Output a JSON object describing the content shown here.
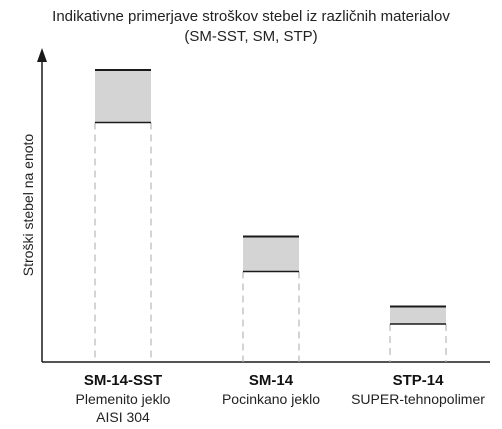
{
  "chart_data": {
    "type": "bar",
    "title": "Indikativne primerjave stroškov stebel iz različnih materialov",
    "subtitle": "(SM-SST, SM, STP)",
    "ylabel": "Stroški stebel na enoto",
    "xlabel": "",
    "ylim": [
      0,
      100
    ],
    "grid": false,
    "legend": "none",
    "categories": [
      {
        "name": "SM-14-SST",
        "desc1": "Plemenito jeklo",
        "desc2": "AISI 304"
      },
      {
        "name": "SM-14",
        "desc1": "Pocinkano jeklo",
        "desc2": ""
      },
      {
        "name": "STP-14",
        "desc1": "SUPER-tehnopolimer",
        "desc2": ""
      }
    ],
    "ranges": [
      {
        "low": 82,
        "high": 100
      },
      {
        "low": 31,
        "high": 43
      },
      {
        "low": 13,
        "high": 19
      }
    ],
    "colors": {
      "band": "#d4d4d4",
      "line": "#1a1a1a",
      "dash": "#b8b8b8"
    }
  }
}
